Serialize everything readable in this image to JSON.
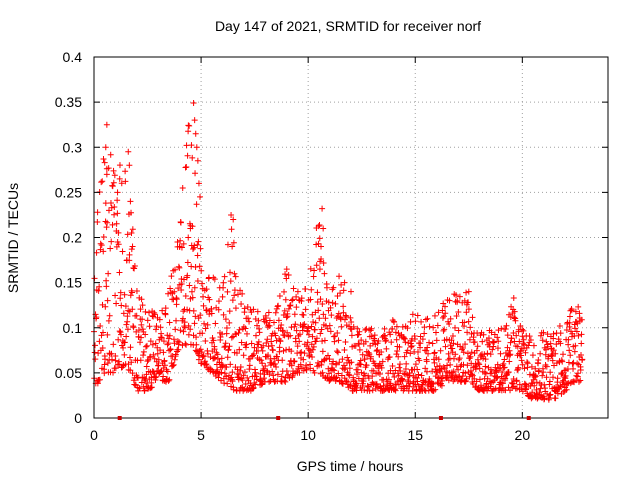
{
  "chart_data": {
    "type": "scatter",
    "title": "Day 147 of 2021, SRMTID for receiver norf",
    "xlabel": "GPS time / hours",
    "ylabel": "SRMTID / TECUs",
    "xlim": [
      0,
      24
    ],
    "ylim": [
      0,
      0.4
    ],
    "xticks": [
      0,
      5,
      10,
      15,
      20
    ],
    "yticks": [
      0,
      0.05,
      0.1,
      0.15,
      0.2,
      0.25,
      0.3,
      0.35,
      0.4
    ],
    "xtick_labels": [
      "0",
      "5",
      "10",
      "15",
      "20"
    ],
    "ytick_labels": [
      "0",
      "0.05",
      "0.1",
      "0.15",
      "0.2",
      "0.25",
      "0.3",
      "0.35",
      "0.4"
    ],
    "grid": true,
    "marker": "+",
    "color": "#ff0000",
    "marker_color": "#cc0000",
    "x_axis_markers": [
      1.2,
      8.6,
      16.2,
      20.3
    ],
    "series": [
      {
        "name": "SRMTID",
        "envelope": [
          [
            0.0,
            0.03,
            0.18
          ],
          [
            0.5,
            0.05,
            0.33
          ],
          [
            1.0,
            0.05,
            0.27
          ],
          [
            1.5,
            0.06,
            0.3
          ],
          [
            2.0,
            0.03,
            0.16
          ],
          [
            2.5,
            0.03,
            0.12
          ],
          [
            3.0,
            0.04,
            0.12
          ],
          [
            3.5,
            0.04,
            0.14
          ],
          [
            4.0,
            0.08,
            0.22
          ],
          [
            4.5,
            0.08,
            0.35
          ],
          [
            5.0,
            0.06,
            0.18
          ],
          [
            5.5,
            0.05,
            0.16
          ],
          [
            6.0,
            0.04,
            0.16
          ],
          [
            6.5,
            0.03,
            0.23
          ],
          [
            7.0,
            0.03,
            0.13
          ],
          [
            7.5,
            0.03,
            0.12
          ],
          [
            8.0,
            0.04,
            0.12
          ],
          [
            8.5,
            0.04,
            0.12
          ],
          [
            9.0,
            0.04,
            0.17
          ],
          [
            9.5,
            0.05,
            0.14
          ],
          [
            10.0,
            0.05,
            0.15
          ],
          [
            10.5,
            0.05,
            0.23
          ],
          [
            11.0,
            0.04,
            0.14
          ],
          [
            11.5,
            0.04,
            0.16
          ],
          [
            12.0,
            0.03,
            0.11
          ],
          [
            12.5,
            0.03,
            0.1
          ],
          [
            13.0,
            0.03,
            0.1
          ],
          [
            13.5,
            0.03,
            0.1
          ],
          [
            14.0,
            0.03,
            0.11
          ],
          [
            14.5,
            0.03,
            0.1
          ],
          [
            15.0,
            0.03,
            0.12
          ],
          [
            15.5,
            0.03,
            0.11
          ],
          [
            16.0,
            0.03,
            0.12
          ],
          [
            16.5,
            0.04,
            0.14
          ],
          [
            17.0,
            0.04,
            0.14
          ],
          [
            17.5,
            0.04,
            0.14
          ],
          [
            18.0,
            0.03,
            0.1
          ],
          [
            18.5,
            0.03,
            0.1
          ],
          [
            19.0,
            0.03,
            0.1
          ],
          [
            19.5,
            0.03,
            0.13
          ],
          [
            20.0,
            0.03,
            0.1
          ],
          [
            20.5,
            0.02,
            0.09
          ],
          [
            21.0,
            0.02,
            0.1
          ],
          [
            21.5,
            0.02,
            0.1
          ],
          [
            22.0,
            0.03,
            0.11
          ],
          [
            22.5,
            0.04,
            0.13
          ],
          [
            22.8,
            0.04,
            0.12
          ]
        ],
        "peaks": [
          [
            0.6,
            0.325
          ],
          [
            0.55,
            0.3
          ],
          [
            0.5,
            0.283
          ],
          [
            0.6,
            0.27
          ],
          [
            0.7,
            0.23
          ],
          [
            1.1,
            0.25
          ],
          [
            1.2,
            0.265
          ],
          [
            1.6,
            0.295
          ],
          [
            1.65,
            0.28
          ],
          [
            1.7,
            0.24
          ],
          [
            1.75,
            0.205
          ],
          [
            1.8,
            0.19
          ],
          [
            4.65,
            0.349
          ],
          [
            4.7,
            0.33
          ],
          [
            4.75,
            0.315
          ],
          [
            4.8,
            0.3
          ],
          [
            4.85,
            0.285
          ],
          [
            4.9,
            0.26
          ],
          [
            4.95,
            0.245
          ],
          [
            4.5,
            0.21
          ],
          [
            4.4,
            0.2
          ],
          [
            3.9,
            0.195
          ],
          [
            4.0,
            0.19
          ],
          [
            6.4,
            0.225
          ],
          [
            6.5,
            0.22
          ],
          [
            6.45,
            0.19
          ],
          [
            10.65,
            0.232
          ],
          [
            10.7,
            0.21
          ],
          [
            10.6,
            0.19
          ],
          [
            10.55,
            0.165
          ],
          [
            11.7,
            0.15
          ],
          [
            12.0,
            0.14
          ],
          [
            9.0,
            0.165
          ],
          [
            19.6,
            0.133
          ],
          [
            17.5,
            0.14
          ],
          [
            16.6,
            0.13
          ]
        ],
        "note": "about 1900 points spanning 0 to 22.8 hours; values summarised by per-half-hour min/max envelope"
      }
    ]
  }
}
